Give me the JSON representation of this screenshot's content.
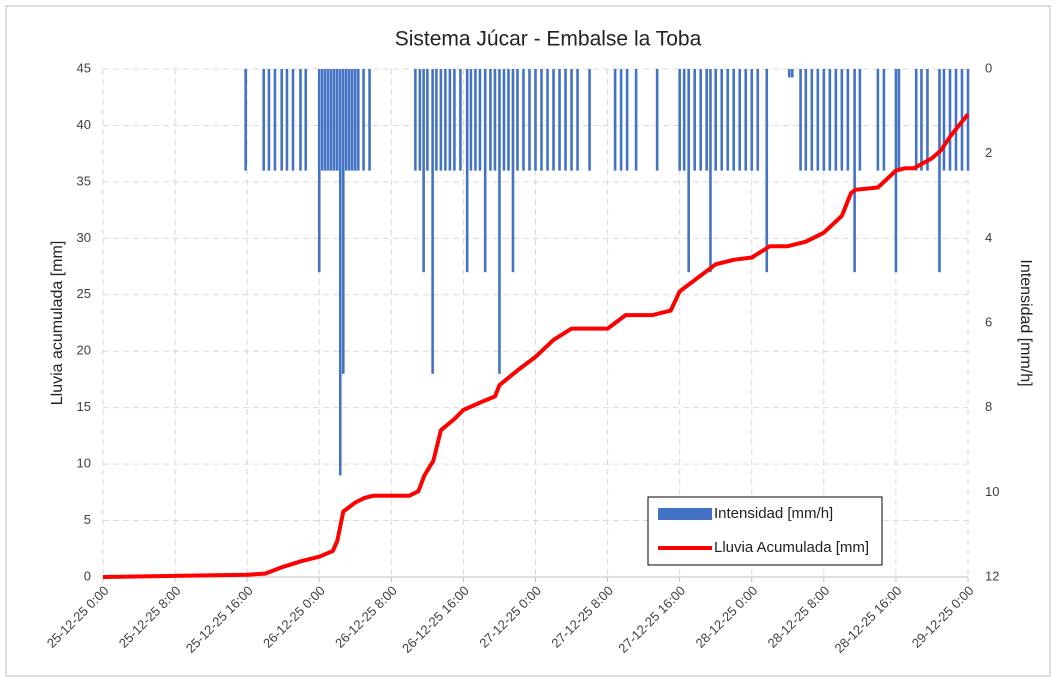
{
  "chart_data": {
    "type": "combo",
    "title": "Sistema Júcar - Embalse la Toba",
    "ylabel": "Lluvia acumulada [mm]",
    "y2label": "Intensidad [mm/h]",
    "ylim": [
      0,
      45
    ],
    "yticks": [
      0,
      5,
      10,
      15,
      20,
      25,
      30,
      35,
      40,
      45
    ],
    "y2lim": [
      0,
      12
    ],
    "y2ticks": [
      0,
      2,
      4,
      6,
      8,
      10,
      12
    ],
    "y2_inverted": true,
    "xlim": [
      "25-12-25 0:00",
      "29-12-25 0:00"
    ],
    "xticks": [
      "25-12-25 0:00",
      "25-12-25 8:00",
      "25-12-25 16:00",
      "26-12-25 0:00",
      "26-12-25 8:00",
      "26-12-25 16:00",
      "27-12-25 0:00",
      "27-12-25 8:00",
      "27-12-25 16:00",
      "28-12-25 0:00",
      "28-12-25 8:00",
      "28-12-25 16:00",
      "29-12-25 0:00"
    ],
    "grid": true,
    "legend": "lower right",
    "series": [
      {
        "name": "Intensidad [mm/h]",
        "type": "bar",
        "axis": "y2",
        "color": "#4472c4",
        "x": [
          "25-12-25 15:50",
          "25-12-25 17:50",
          "25-12-25 18:25",
          "25-12-25 19:05",
          "25-12-25 19:50",
          "25-12-25 20:25",
          "25-12-25 21:05",
          "25-12-25 21:55",
          "25-12-25 22:30",
          "26-12-25 0:00",
          "26-12-25 0:20",
          "26-12-25 0:40",
          "26-12-25 1:00",
          "26-12-25 1:20",
          "26-12-25 1:40",
          "26-12-25 2:00",
          "26-12-25 2:20",
          "26-12-25 2:40",
          "26-12-25 3:00",
          "26-12-25 3:20",
          "26-12-25 3:40",
          "26-12-25 4:00",
          "26-12-25 4:20",
          "26-12-25 4:55",
          "26-12-25 5:35",
          "26-12-25 10:40",
          "26-12-25 11:10",
          "26-12-25 11:35",
          "26-12-25 12:00",
          "26-12-25 12:35",
          "26-12-25 13:00",
          "26-12-25 13:30",
          "26-12-25 14:00",
          "26-12-25 14:30",
          "26-12-25 15:00",
          "26-12-25 15:40",
          "26-12-25 16:25",
          "26-12-25 16:50",
          "26-12-25 17:20",
          "26-12-25 17:50",
          "26-12-25 18:25",
          "26-12-25 19:00",
          "26-12-25 19:30",
          "26-12-25 20:00",
          "26-12-25 20:30",
          "26-12-25 21:00",
          "26-12-25 21:30",
          "26-12-25 22:00",
          "26-12-25 22:40",
          "26-12-25 23:20",
          "27-12-25 0:00",
          "27-12-25 0:40",
          "27-12-25 1:20",
          "27-12-25 2:00",
          "27-12-25 2:40",
          "27-12-25 3:20",
          "27-12-25 4:00",
          "27-12-25 4:40",
          "27-12-25 6:00",
          "27-12-25 8:50",
          "27-12-25 9:30",
          "27-12-25 10:10",
          "27-12-25 11:10",
          "27-12-25 13:30",
          "27-12-25 16:00",
          "27-12-25 16:30",
          "27-12-25 17:00",
          "27-12-25 17:40",
          "27-12-25 18:20",
          "27-12-25 19:00",
          "27-12-25 19:25",
          "27-12-25 20:00",
          "27-12-25 20:40",
          "27-12-25 21:20",
          "27-12-25 22:00",
          "27-12-25 22:40",
          "27-12-25 23:20",
          "28-12-25 0:00",
          "28-12-25 0:40",
          "28-12-25 1:40",
          "28-12-25 4:10",
          "28-12-25 4:30",
          "28-12-25 5:25",
          "28-12-25 6:00",
          "28-12-25 6:40",
          "28-12-25 7:20",
          "28-12-25 8:00",
          "28-12-25 8:40",
          "28-12-25 9:20",
          "28-12-25 10:00",
          "28-12-25 10:40",
          "28-12-25 11:25",
          "28-12-25 12:00",
          "28-12-25 14:00",
          "28-12-25 14:40",
          "28-12-25 16:00",
          "28-12-25 16:20",
          "28-12-25 18:15",
          "28-12-25 18:50",
          "28-12-25 19:30",
          "28-12-25 20:50",
          "28-12-25 21:20",
          "28-12-25 22:00",
          "28-12-25 22:40",
          "28-12-25 23:20",
          "29-12-25 0:00"
        ],
        "values": [
          2.4,
          2.4,
          2.4,
          2.4,
          2.4,
          2.4,
          2.4,
          2.4,
          2.4,
          4.8,
          2.4,
          2.4,
          2.4,
          2.4,
          2.4,
          2.4,
          9.6,
          7.2,
          2.4,
          2.4,
          2.4,
          2.4,
          2.4,
          2.4,
          2.4,
          2.4,
          2.4,
          4.8,
          2.4,
          7.2,
          2.4,
          2.4,
          2.4,
          2.4,
          2.4,
          2.4,
          4.8,
          2.4,
          2.4,
          2.4,
          4.8,
          2.4,
          2.4,
          7.2,
          2.4,
          2.4,
          4.8,
          2.4,
          2.4,
          2.4,
          2.4,
          2.4,
          2.4,
          2.4,
          2.4,
          2.4,
          2.4,
          2.4,
          2.4,
          2.4,
          2.4,
          2.4,
          2.4,
          2.4,
          2.4,
          2.4,
          4.8,
          2.4,
          2.4,
          2.4,
          4.8,
          2.4,
          2.4,
          2.4,
          2.4,
          2.4,
          2.4,
          2.4,
          2.4,
          4.8,
          0.2,
          0.2,
          2.4,
          2.4,
          2.4,
          2.4,
          2.4,
          2.4,
          2.4,
          2.4,
          2.4,
          4.8,
          2.4,
          2.4,
          2.4,
          4.8,
          2.4,
          2.4,
          2.4,
          2.4,
          4.8,
          2.4,
          2.4,
          2.4,
          2.4,
          2.4
        ]
      },
      {
        "name": "Lluvia Acumulada [mm]",
        "type": "line",
        "axis": "y",
        "color": "#ff0000",
        "x": [
          "25-12-25 0:00",
          "25-12-25 16:00",
          "25-12-25 18:00",
          "25-12-25 20:00",
          "25-12-25 22:00",
          "26-12-25 0:00",
          "26-12-25 1:30",
          "26-12-25 2:00",
          "26-12-25 2:40",
          "26-12-25 4:00",
          "26-12-25 5:00",
          "26-12-25 6:00",
          "26-12-25 10:00",
          "26-12-25 11:00",
          "26-12-25 11:40",
          "26-12-25 12:40",
          "26-12-25 13:30",
          "26-12-25 15:00",
          "26-12-25 16:00",
          "26-12-25 18:00",
          "26-12-25 19:30",
          "26-12-25 20:00",
          "26-12-25 22:00",
          "27-12-25 0:00",
          "27-12-25 2:00",
          "27-12-25 4:00",
          "27-12-25 8:00",
          "27-12-25 10:00",
          "27-12-25 13:00",
          "27-12-25 15:00",
          "27-12-25 16:00",
          "27-12-25 18:00",
          "27-12-25 20:00",
          "27-12-25 22:00",
          "28-12-25 0:00",
          "28-12-25 2:00",
          "28-12-25 4:00",
          "28-12-25 6:00",
          "28-12-25 8:00",
          "28-12-25 10:00",
          "28-12-25 11:00",
          "28-12-25 11:30",
          "28-12-25 14:00",
          "28-12-25 16:00",
          "28-12-25 17:00",
          "28-12-25 18:00",
          "28-12-25 20:00",
          "28-12-25 21:00",
          "28-12-25 22:00",
          "28-12-25 23:00",
          "29-12-25 0:00"
        ],
        "values": [
          0,
          0.2,
          0.3,
          0.9,
          1.4,
          1.8,
          2.3,
          3.2,
          5.8,
          6.6,
          7.0,
          7.2,
          7.2,
          7.6,
          9,
          10.3,
          13,
          14,
          14.8,
          15.5,
          16,
          17,
          18.3,
          19.5,
          21,
          22,
          22,
          23.2,
          23.2,
          23.6,
          25.3,
          26.5,
          27.7,
          28.1,
          28.3,
          29.3,
          29.3,
          29.7,
          30.5,
          32,
          34,
          34.3,
          34.5,
          36,
          36.2,
          36.2,
          37.1,
          37.8,
          39,
          40,
          41
        ]
      }
    ]
  }
}
